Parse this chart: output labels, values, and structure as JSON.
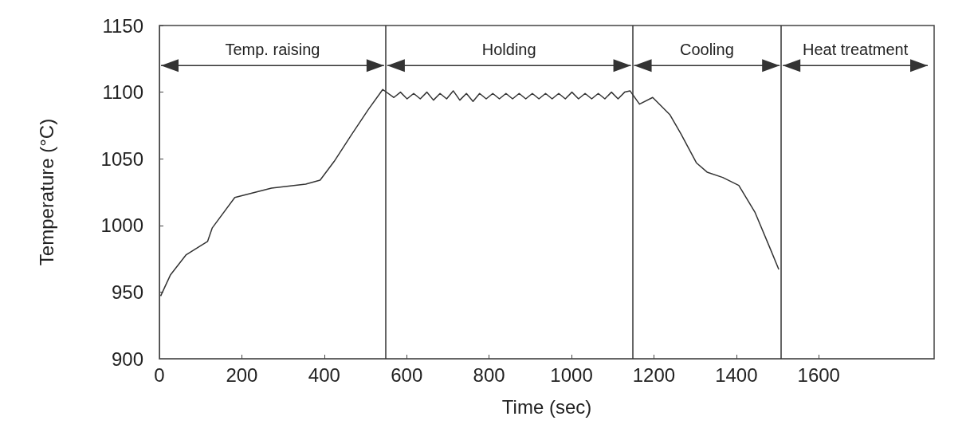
{
  "chart_data": {
    "type": "line",
    "xlabel": "Time (sec)",
    "ylabel": "Temperature (°C)",
    "x": [
      3,
      27,
      65,
      117,
      128,
      183,
      272,
      355,
      390,
      424,
      466,
      507,
      542,
      569,
      585,
      601,
      617,
      633,
      649,
      665,
      681,
      697,
      713,
      729,
      745,
      761,
      777,
      793,
      809,
      825,
      841,
      857,
      873,
      889,
      905,
      921,
      937,
      953,
      969,
      985,
      1001,
      1017,
      1033,
      1049,
      1065,
      1081,
      1097,
      1113,
      1129,
      1142,
      1165,
      1197,
      1239,
      1265,
      1303,
      1329,
      1367,
      1406,
      1445,
      1483,
      1503
    ],
    "series": [
      {
        "color": "#333333",
        "values": [
          947,
          963,
          978,
          988,
          998,
          1021,
          1028,
          1031,
          1034,
          1048,
          1068,
          1087,
          1102,
          1096,
          1100,
          1095,
          1099,
          1095,
          1100,
          1094,
          1099,
          1095,
          1101,
          1094,
          1099,
          1093,
          1099,
          1095,
          1099,
          1095,
          1099,
          1095,
          1099,
          1095,
          1099,
          1095,
          1099,
          1095,
          1099,
          1095,
          1100,
          1095,
          1099,
          1095,
          1099,
          1095,
          1100,
          1095,
          1100,
          1101,
          1091,
          1096,
          1083,
          1069,
          1047,
          1040,
          1036,
          1030,
          1010,
          982,
          967
        ]
      }
    ],
    "xlim": [
      0,
      1880
    ],
    "xticks": [
      0,
      200,
      400,
      600,
      800,
      1000,
      1200,
      1400,
      1600
    ],
    "ylim": [
      900,
      1150
    ],
    "yticks": [
      900,
      950,
      1000,
      1050,
      1100,
      1150
    ],
    "ref_lines": [
      {
        "axis": "x",
        "value": 549,
        "color": "#333333"
      },
      {
        "axis": "x",
        "value": 1148,
        "color": "#333333"
      },
      {
        "axis": "x",
        "value": 1509,
        "color": "#333333"
      }
    ],
    "annotations": [
      "Temp. raising",
      "Holding",
      "Cooling",
      "Heat treatment"
    ],
    "grid": false,
    "marker": "none",
    "line_style": "solid"
  }
}
